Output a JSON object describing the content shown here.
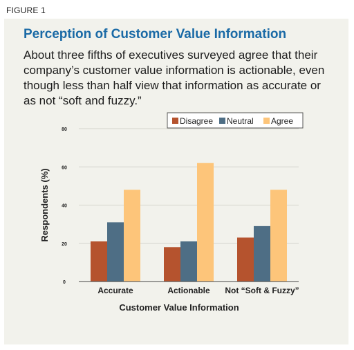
{
  "figure_label": "FIGURE 1",
  "title": "Perception of Customer Value Information",
  "subtitle": "About three fifths of executives surveyed agree that their company’s customer value information is actionable, even though less than half view that information as accurate or as not “soft and fuzzy.”",
  "chart_data": {
    "type": "bar",
    "categories": [
      "Accurate",
      "Actionable",
      "Not “Soft & Fuzzy”"
    ],
    "series": [
      {
        "name": "Disagree",
        "values": [
          21,
          18,
          23
        ],
        "color": "#b5532e"
      },
      {
        "name": "Neutral",
        "values": [
          31,
          21,
          29
        ],
        "color": "#4e6e85"
      },
      {
        "name": "Agree",
        "values": [
          48,
          62,
          48
        ],
        "color": "#fdc57a"
      }
    ],
    "xlabel": "Customer Value Information",
    "ylabel": "Respondents  (%)",
    "ylim": [
      0,
      80
    ],
    "yticks": [
      0,
      20,
      40,
      60,
      80
    ],
    "grid": true,
    "legend_position": "top-right"
  }
}
